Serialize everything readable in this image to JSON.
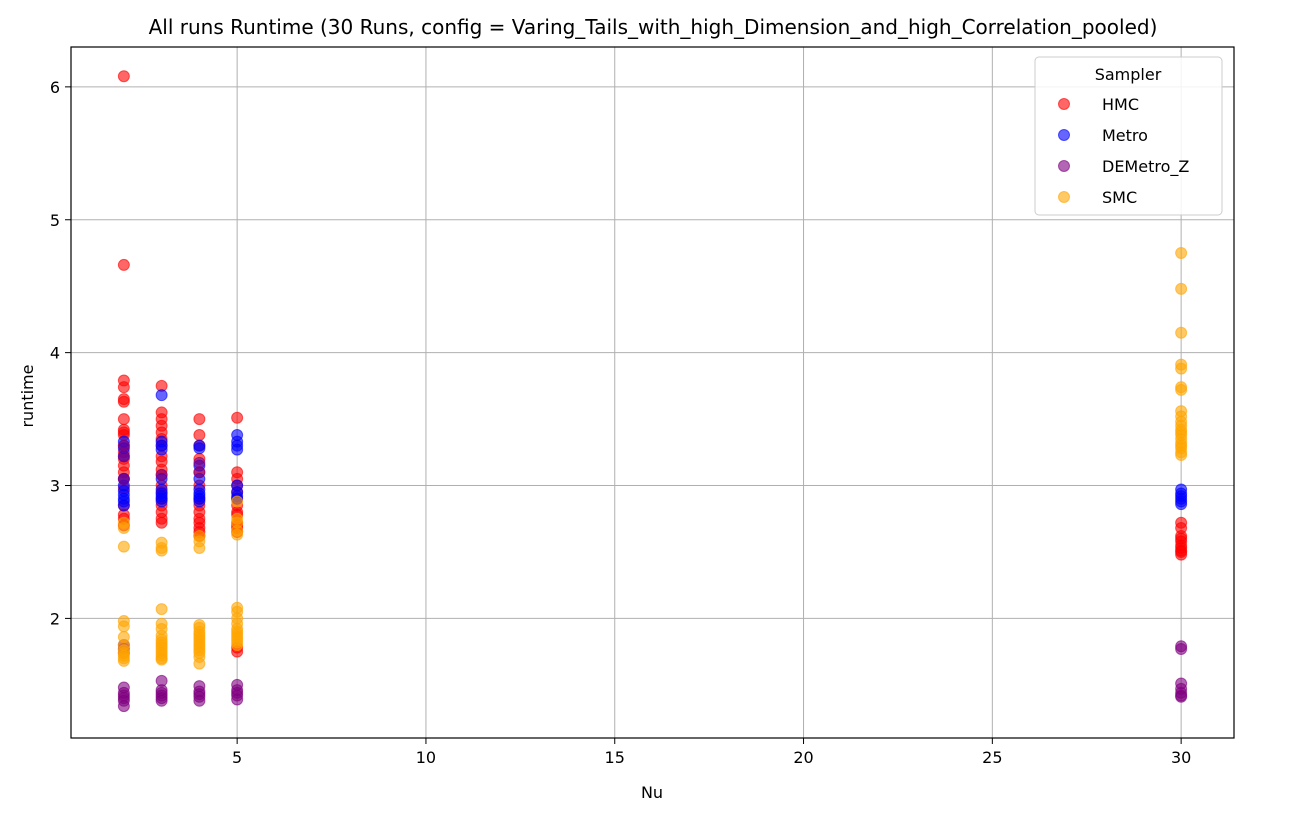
{
  "chart_data": {
    "type": "scatter",
    "title": "All runs Runtime (30 Runs, config = Varing_Tails_with_high_Dimension_and_high_Correlation_pooled)",
    "xlabel": "Nu",
    "ylabel": "runtime",
    "xlim": [
      0.6,
      31.4
    ],
    "ylim": [
      1.1,
      6.3
    ],
    "xticks": [
      5,
      10,
      15,
      20,
      25,
      30
    ],
    "yticks": [
      2,
      3,
      4,
      5,
      6
    ],
    "grid": true,
    "legend": {
      "title": "Sampler",
      "position": "top-right"
    },
    "series": [
      {
        "name": "HMC",
        "color": "#ff0000",
        "points": [
          [
            2,
            6.08
          ],
          [
            2,
            4.66
          ],
          [
            2,
            3.79
          ],
          [
            2,
            3.74
          ],
          [
            2,
            3.65
          ],
          [
            2,
            3.63
          ],
          [
            2,
            3.5
          ],
          [
            2,
            3.42
          ],
          [
            2,
            3.4
          ],
          [
            2,
            3.38
          ],
          [
            2,
            3.3
          ],
          [
            2,
            3.25
          ],
          [
            2,
            3.2
          ],
          [
            2,
            3.15
          ],
          [
            2,
            3.1
          ],
          [
            2,
            3.05
          ],
          [
            2,
            2.98
          ],
          [
            2,
            2.85
          ],
          [
            2,
            2.78
          ],
          [
            2,
            2.75
          ],
          [
            2,
            2.7
          ],
          [
            3,
            3.75
          ],
          [
            3,
            3.55
          ],
          [
            3,
            3.5
          ],
          [
            3,
            3.45
          ],
          [
            3,
            3.4
          ],
          [
            3,
            3.35
          ],
          [
            3,
            3.3
          ],
          [
            3,
            3.22
          ],
          [
            3,
            3.18
          ],
          [
            3,
            3.12
          ],
          [
            3,
            3.08
          ],
          [
            3,
            3.0
          ],
          [
            3,
            2.95
          ],
          [
            3,
            2.9
          ],
          [
            3,
            2.85
          ],
          [
            3,
            2.8
          ],
          [
            3,
            2.75
          ],
          [
            3,
            2.72
          ],
          [
            4,
            3.5
          ],
          [
            4,
            3.38
          ],
          [
            4,
            3.3
          ],
          [
            4,
            3.2
          ],
          [
            4,
            3.1
          ],
          [
            4,
            3.0
          ],
          [
            4,
            2.9
          ],
          [
            4,
            2.85
          ],
          [
            4,
            2.8
          ],
          [
            4,
            2.75
          ],
          [
            4,
            2.72
          ],
          [
            4,
            2.68
          ],
          [
            4,
            2.65
          ],
          [
            4,
            2.62
          ],
          [
            5,
            3.51
          ],
          [
            5,
            3.1
          ],
          [
            5,
            3.05
          ],
          [
            5,
            3.0
          ],
          [
            5,
            2.95
          ],
          [
            5,
            2.9
          ],
          [
            5,
            2.85
          ],
          [
            5,
            2.8
          ],
          [
            5,
            2.78
          ],
          [
            5,
            2.72
          ],
          [
            5,
            2.7
          ],
          [
            5,
            2.68
          ],
          [
            5,
            2.65
          ],
          [
            5,
            1.78
          ],
          [
            5,
            1.75
          ],
          [
            30,
            2.72
          ],
          [
            30,
            2.68
          ],
          [
            30,
            2.62
          ],
          [
            30,
            2.6
          ],
          [
            30,
            2.58
          ],
          [
            30,
            2.55
          ],
          [
            30,
            2.53
          ],
          [
            30,
            2.51
          ],
          [
            30,
            2.5
          ],
          [
            30,
            2.48
          ]
        ]
      },
      {
        "name": "Metro",
        "color": "#0000ff",
        "points": [
          [
            2,
            3.33
          ],
          [
            2,
            3.28
          ],
          [
            2,
            3.22
          ],
          [
            2,
            3.05
          ],
          [
            2,
            3.0
          ],
          [
            2,
            2.96
          ],
          [
            2,
            2.93
          ],
          [
            2,
            2.9
          ],
          [
            2,
            2.88
          ],
          [
            2,
            2.85
          ],
          [
            3,
            3.68
          ],
          [
            3,
            3.33
          ],
          [
            3,
            3.3
          ],
          [
            3,
            3.27
          ],
          [
            3,
            3.05
          ],
          [
            3,
            2.97
          ],
          [
            3,
            2.94
          ],
          [
            3,
            2.92
          ],
          [
            3,
            2.9
          ],
          [
            3,
            2.88
          ],
          [
            4,
            3.3
          ],
          [
            4,
            3.28
          ],
          [
            4,
            3.15
          ],
          [
            4,
            3.05
          ],
          [
            4,
            2.97
          ],
          [
            4,
            2.94
          ],
          [
            4,
            2.92
          ],
          [
            4,
            2.9
          ],
          [
            4,
            2.88
          ],
          [
            5,
            3.38
          ],
          [
            5,
            3.33
          ],
          [
            5,
            3.3
          ],
          [
            5,
            3.27
          ],
          [
            5,
            3.0
          ],
          [
            5,
            2.95
          ],
          [
            5,
            2.92
          ],
          [
            5,
            2.9
          ],
          [
            30,
            2.97
          ],
          [
            30,
            2.94
          ],
          [
            30,
            2.92
          ],
          [
            30,
            2.9
          ],
          [
            30,
            2.88
          ],
          [
            30,
            2.86
          ]
        ]
      },
      {
        "name": "DEMetro_Z",
        "color": "#800080",
        "points": [
          [
            2,
            3.3
          ],
          [
            2,
            3.22
          ],
          [
            2,
            3.05
          ],
          [
            2,
            1.8
          ],
          [
            2,
            1.77
          ],
          [
            2,
            1.74
          ],
          [
            2,
            1.48
          ],
          [
            2,
            1.44
          ],
          [
            2,
            1.42
          ],
          [
            2,
            1.4
          ],
          [
            2,
            1.38
          ],
          [
            2,
            1.34
          ],
          [
            3,
            3.08
          ],
          [
            3,
            1.53
          ],
          [
            3,
            1.46
          ],
          [
            3,
            1.44
          ],
          [
            3,
            1.42
          ],
          [
            3,
            1.4
          ],
          [
            3,
            1.38
          ],
          [
            4,
            3.17
          ],
          [
            4,
            3.1
          ],
          [
            4,
            1.49
          ],
          [
            4,
            1.45
          ],
          [
            4,
            1.43
          ],
          [
            4,
            1.41
          ],
          [
            4,
            1.38
          ],
          [
            5,
            1.5
          ],
          [
            5,
            1.46
          ],
          [
            5,
            1.44
          ],
          [
            5,
            1.42
          ],
          [
            5,
            1.39
          ],
          [
            30,
            1.79
          ],
          [
            30,
            1.77
          ],
          [
            30,
            1.51
          ],
          [
            30,
            1.47
          ],
          [
            30,
            1.44
          ],
          [
            30,
            1.42
          ],
          [
            30,
            1.41
          ]
        ]
      },
      {
        "name": "SMC",
        "color": "#ffa500",
        "points": [
          [
            2,
            2.72
          ],
          [
            2,
            2.68
          ],
          [
            2,
            2.54
          ],
          [
            2,
            1.98
          ],
          [
            2,
            1.94
          ],
          [
            2,
            1.86
          ],
          [
            2,
            1.8
          ],
          [
            2,
            1.76
          ],
          [
            2,
            1.74
          ],
          [
            2,
            1.72
          ],
          [
            2,
            1.7
          ],
          [
            2,
            1.68
          ],
          [
            3,
            2.57
          ],
          [
            3,
            2.53
          ],
          [
            3,
            2.51
          ],
          [
            3,
            2.07
          ],
          [
            3,
            1.96
          ],
          [
            3,
            1.92
          ],
          [
            3,
            1.87
          ],
          [
            3,
            1.84
          ],
          [
            3,
            1.82
          ],
          [
            3,
            1.8
          ],
          [
            3,
            1.78
          ],
          [
            3,
            1.76
          ],
          [
            3,
            1.74
          ],
          [
            3,
            1.72
          ],
          [
            3,
            1.7
          ],
          [
            3,
            1.69
          ],
          [
            4,
            2.62
          ],
          [
            4,
            2.58
          ],
          [
            4,
            2.53
          ],
          [
            4,
            1.95
          ],
          [
            4,
            1.93
          ],
          [
            4,
            1.9
          ],
          [
            4,
            1.88
          ],
          [
            4,
            1.86
          ],
          [
            4,
            1.84
          ],
          [
            4,
            1.82
          ],
          [
            4,
            1.8
          ],
          [
            4,
            1.78
          ],
          [
            4,
            1.76
          ],
          [
            4,
            1.74
          ],
          [
            4,
            1.71
          ],
          [
            4,
            1.66
          ],
          [
            5,
            2.88
          ],
          [
            5,
            2.75
          ],
          [
            5,
            2.72
          ],
          [
            5,
            2.66
          ],
          [
            5,
            2.63
          ],
          [
            5,
            2.08
          ],
          [
            5,
            2.05
          ],
          [
            5,
            2.0
          ],
          [
            5,
            1.96
          ],
          [
            5,
            1.92
          ],
          [
            5,
            1.9
          ],
          [
            5,
            1.88
          ],
          [
            5,
            1.86
          ],
          [
            5,
            1.84
          ],
          [
            5,
            1.82
          ],
          [
            5,
            1.8
          ],
          [
            30,
            4.75
          ],
          [
            30,
            4.48
          ],
          [
            30,
            4.15
          ],
          [
            30,
            3.91
          ],
          [
            30,
            3.88
          ],
          [
            30,
            3.74
          ],
          [
            30,
            3.72
          ],
          [
            30,
            3.56
          ],
          [
            30,
            3.52
          ],
          [
            30,
            3.48
          ],
          [
            30,
            3.45
          ],
          [
            30,
            3.42
          ],
          [
            30,
            3.4
          ],
          [
            30,
            3.38
          ],
          [
            30,
            3.35
          ],
          [
            30,
            3.32
          ],
          [
            30,
            3.3
          ],
          [
            30,
            3.28
          ],
          [
            30,
            3.25
          ],
          [
            30,
            3.23
          ]
        ]
      }
    ]
  }
}
